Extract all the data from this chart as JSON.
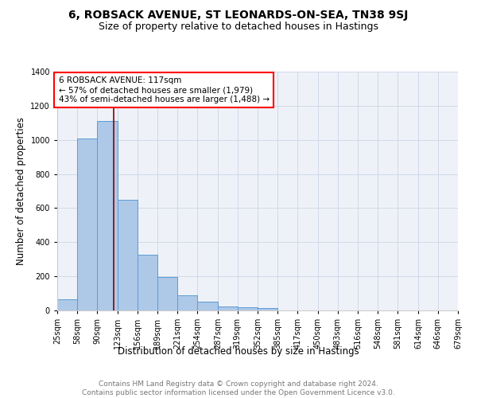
{
  "title1": "6, ROBSACK AVENUE, ST LEONARDS-ON-SEA, TN38 9SJ",
  "title2": "Size of property relative to detached houses in Hastings",
  "xlabel": "Distribution of detached houses by size in Hastings",
  "ylabel": "Number of detached properties",
  "bin_edges": [
    25,
    58,
    90,
    123,
    156,
    189,
    221,
    254,
    287,
    319,
    352,
    385,
    417,
    450,
    483,
    516,
    548,
    581,
    614,
    646,
    679
  ],
  "bar_heights": [
    65,
    1010,
    1110,
    650,
    325,
    195,
    90,
    50,
    25,
    20,
    15,
    0,
    0,
    0,
    0,
    0,
    0,
    0,
    0,
    0
  ],
  "bar_color": "#aec8e8",
  "bar_edge_color": "#5b9bd5",
  "grid_color": "#d0d8e8",
  "bg_color": "#eef2f8",
  "red_line_x": 117,
  "annotation_text": "6 ROBSACK AVENUE: 117sqm\n← 57% of detached houses are smaller (1,979)\n43% of semi-detached houses are larger (1,488) →",
  "annotation_box_color": "white",
  "annotation_box_edge_color": "red",
  "ylim": [
    0,
    1400
  ],
  "yticks": [
    0,
    200,
    400,
    600,
    800,
    1000,
    1200,
    1400
  ],
  "footer_text": "Contains HM Land Registry data © Crown copyright and database right 2024.\nContains public sector information licensed under the Open Government Licence v3.0.",
  "title1_fontsize": 10,
  "title2_fontsize": 9,
  "xlabel_fontsize": 8.5,
  "ylabel_fontsize": 8.5,
  "tick_fontsize": 7,
  "annotation_fontsize": 7.5,
  "footer_fontsize": 6.5
}
